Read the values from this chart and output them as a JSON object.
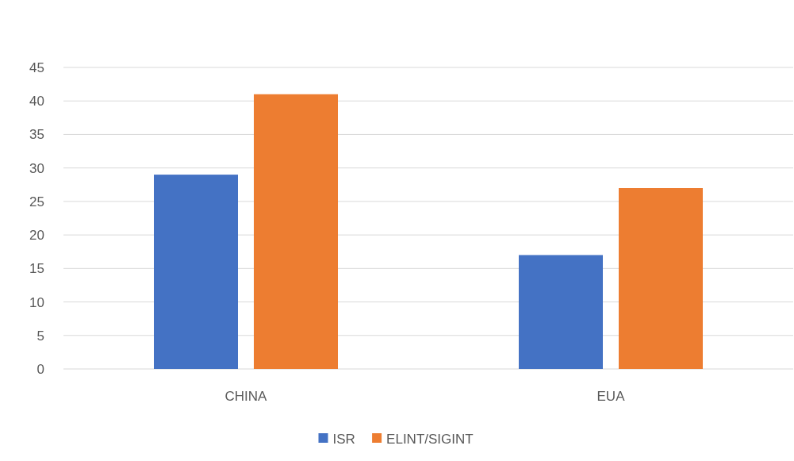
{
  "chart_data": {
    "type": "bar",
    "categories": [
      "CHINA",
      "EUA"
    ],
    "series": [
      {
        "name": "ISR",
        "color": "#4472c4",
        "values": [
          29,
          17
        ]
      },
      {
        "name": "ELINT/SIGINT",
        "color": "#ed7d31",
        "values": [
          41,
          27
        ]
      }
    ],
    "ylim": [
      0,
      45
    ],
    "yticks": [
      0,
      5,
      10,
      15,
      20,
      25,
      30,
      35,
      40,
      45
    ],
    "grid": "y",
    "legend": "bottom"
  }
}
